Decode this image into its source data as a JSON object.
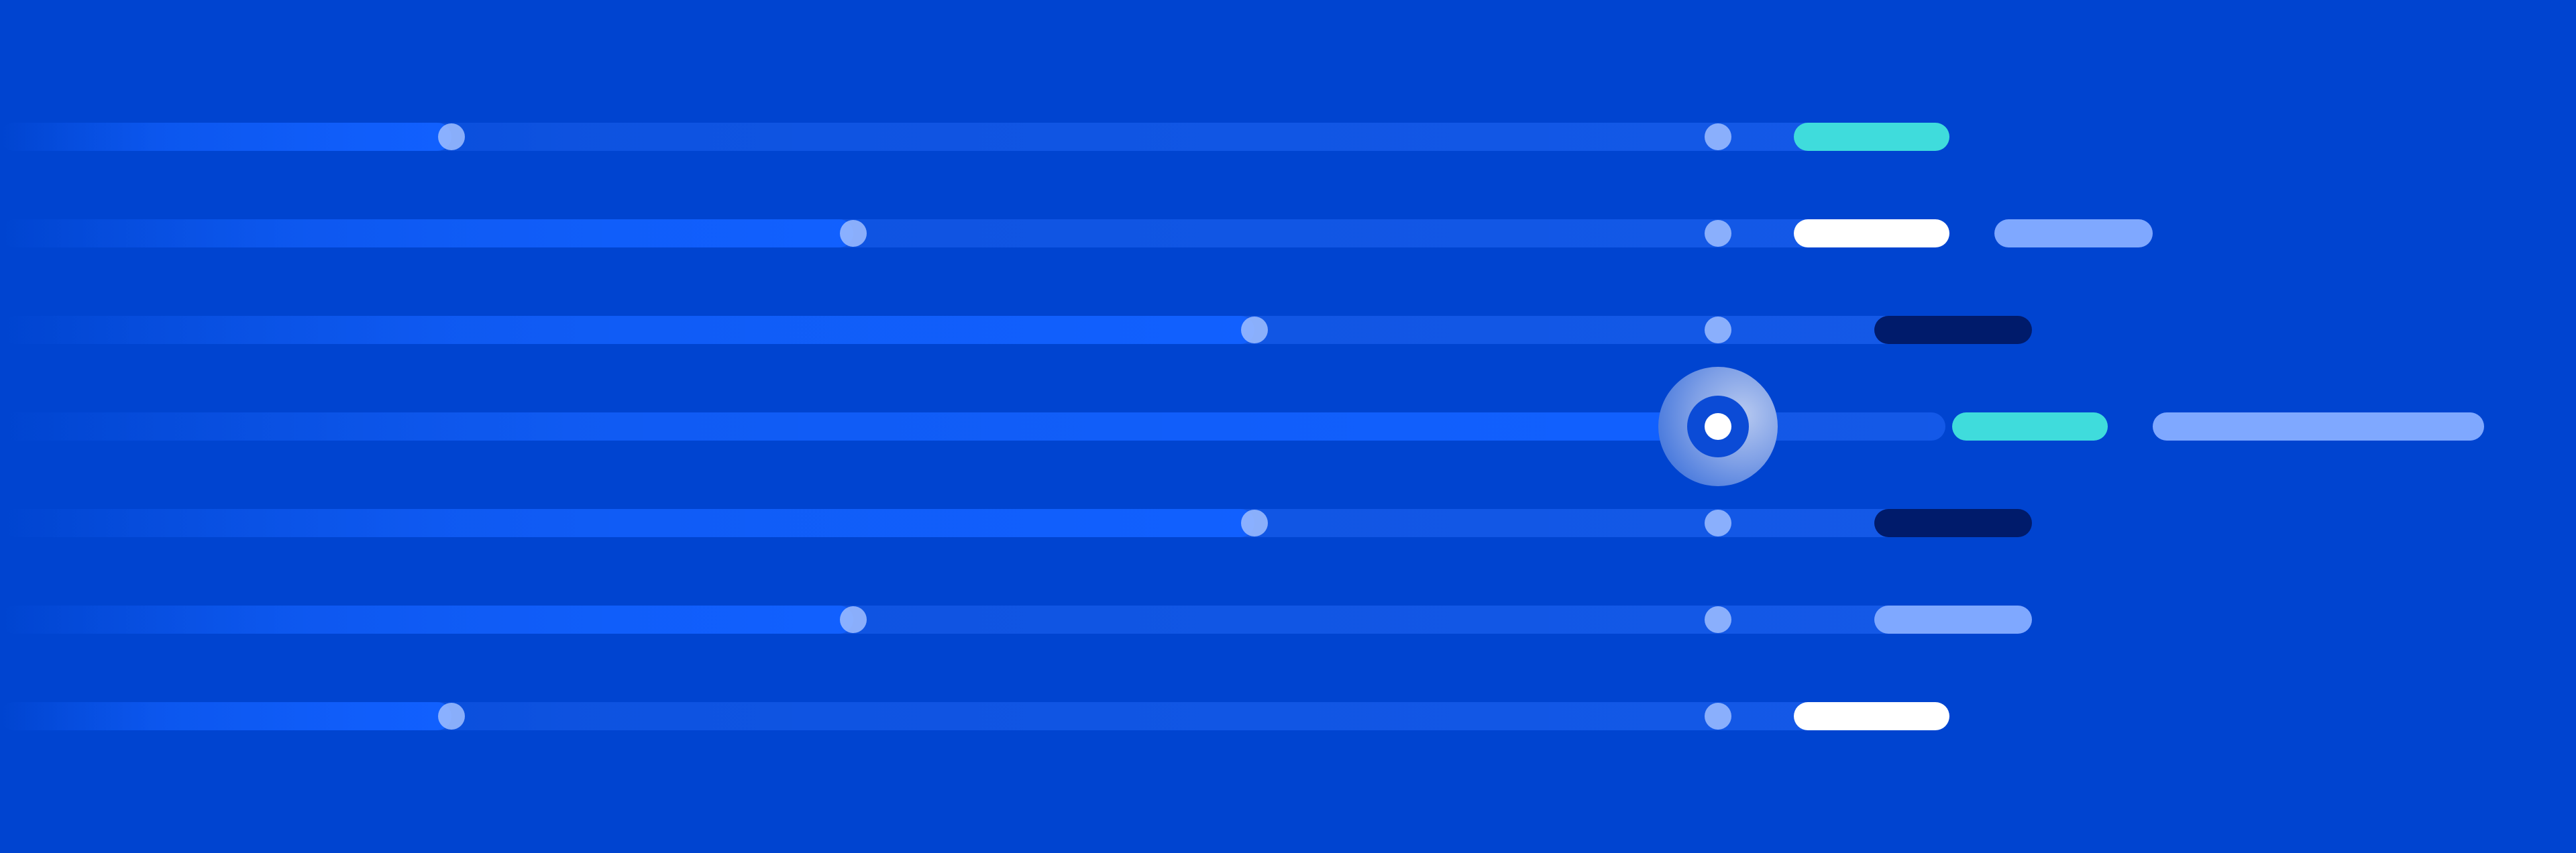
{
  "colors": {
    "background": "#0044d0",
    "fill": "#1160ff",
    "marker": "#a0beff",
    "cyan": "#3fdcdc",
    "white": "#ffffff",
    "light_blue": "#7fa8ff",
    "navy": "#001b6b"
  },
  "timeline": {
    "rows": [
      {
        "progress": 0.18,
        "segments": [
          {
            "color_key": "cyan",
            "start": 0.715,
            "end": 0.777
          }
        ]
      },
      {
        "progress": 0.34,
        "segments": [
          {
            "color_key": "white",
            "start": 0.715,
            "end": 0.777
          },
          {
            "color_key": "light_blue",
            "start": 0.795,
            "end": 0.858
          }
        ]
      },
      {
        "progress": 0.5,
        "segments": [
          {
            "color_key": "navy",
            "start": 0.747,
            "end": 0.81
          }
        ]
      },
      {
        "progress": 0.68,
        "focused": true,
        "segments": [
          {
            "color_key": "cyan",
            "start": 0.778,
            "end": 0.84
          },
          {
            "color_key": "light_blue",
            "start": 0.858,
            "end": 0.99
          }
        ]
      },
      {
        "progress": 0.5,
        "segments": [
          {
            "color_key": "navy",
            "start": 0.747,
            "end": 0.81
          }
        ]
      },
      {
        "progress": 0.34,
        "segments": [
          {
            "color_key": "light_blue",
            "start": 0.747,
            "end": 0.81
          }
        ]
      },
      {
        "progress": 0.18,
        "segments": [
          {
            "color_key": "white",
            "start": 0.715,
            "end": 0.777
          }
        ]
      }
    ],
    "milestone": 0.68
  }
}
